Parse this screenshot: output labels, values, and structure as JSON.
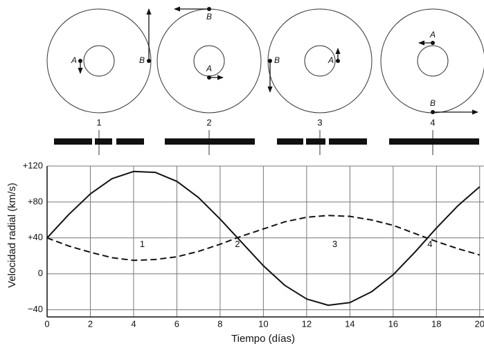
{
  "chart_data": {
    "type": "line",
    "xlabel": "Tiempo (días)",
    "ylabel": "Velocidad radial (km/s)",
    "x": [
      0,
      1,
      2,
      3,
      4,
      5,
      6,
      7,
      8,
      9,
      10,
      11,
      12,
      13,
      14,
      15,
      16,
      17,
      18,
      19,
      20
    ],
    "series": [
      {
        "color": "#111111",
        "linestyle": "solid",
        "values": [
          40,
          66,
          89,
          106,
          114,
          113,
          103,
          85,
          61,
          35,
          9,
          -13,
          -28,
          -35,
          -32,
          -20,
          -1,
          24,
          51,
          76,
          97
        ]
      },
      {
        "color": "#111111",
        "linestyle": "dashed",
        "values": [
          40,
          31,
          24,
          18,
          15,
          16,
          19,
          25,
          33,
          42,
          50,
          58,
          63,
          65,
          64,
          60,
          54,
          45,
          36,
          28,
          21
        ]
      }
    ],
    "xlim": [
      0,
      20.2
    ],
    "ylim": [
      -48,
      120
    ],
    "xticks": [
      0,
      2,
      4,
      6,
      8,
      10,
      12,
      14,
      16,
      18,
      20
    ],
    "yticks": [
      {
        "value": -40,
        "label": "−40"
      },
      0,
      {
        "value": 40,
        "label": "+40"
      },
      {
        "value": 80,
        "label": "+80"
      },
      {
        "value": 120,
        "label": "+120"
      }
    ],
    "grid": true,
    "annotations": [
      {
        "text": "1",
        "x": 4.4,
        "y": 40
      },
      {
        "text": "2",
        "x": 8.8,
        "y": 40
      },
      {
        "text": "3",
        "x": 13.3,
        "y": 40
      },
      {
        "text": "4",
        "x": 17.7,
        "y": 40
      }
    ]
  },
  "orbit_diagrams": [
    {
      "label": "1",
      "star_a": "A",
      "star_b": "B"
    },
    {
      "label": "2",
      "star_a": "A",
      "star_b": "B"
    },
    {
      "label": "3",
      "star_a": "A",
      "star_b": "B"
    },
    {
      "label": "4",
      "star_a": "A",
      "star_b": "B"
    }
  ]
}
